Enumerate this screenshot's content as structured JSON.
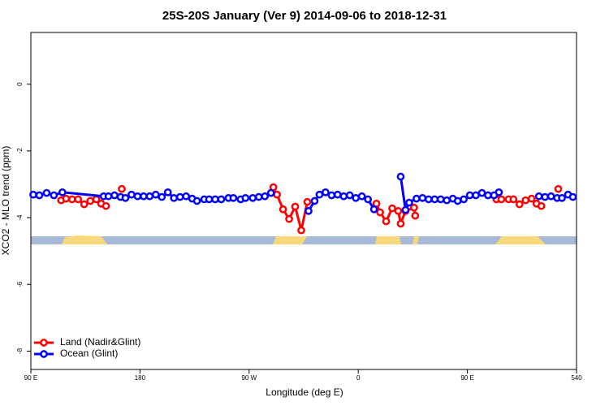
{
  "chart_data": {
    "type": "line",
    "title": "25S-20S January (Ver 9)   2014-09-06 to 2018-12-31",
    "x_label": "Longitude (deg E)",
    "y_label": "XCO2 - MLO trend (ppm)",
    "xlim": [
      90,
      540
    ],
    "xticks": [
      {
        "value": 90,
        "label": "90 E"
      },
      180,
      {
        "value": 270,
        "label": "90 W"
      },
      {
        "value": 360,
        "label": "0"
      },
      {
        "value": 450,
        "label": "90 E"
      },
      540
    ],
    "ylim": [
      -8.55,
      1.55
    ],
    "yticks": [
      0,
      -2,
      -4,
      -6,
      -8
    ],
    "legend": "lower left",
    "series": [
      {
        "name": "Land (Nadir&Glint)",
        "color": "#ff0000",
        "x": [
          115,
          119,
          124,
          129,
          134,
          139,
          144,
          148,
          152,
          null,
          165,
          null,
          290,
          293,
          298,
          303,
          308,
          313,
          318,
          null,
          375,
          378,
          383,
          388,
          393,
          395,
          399,
          406,
          407,
          null,
          474,
          478,
          484,
          488,
          493,
          498,
          503,
          507,
          511,
          null,
          525
        ],
        "values": [
          -3.48,
          -3.43,
          -3.45,
          -3.45,
          -3.6,
          -3.5,
          -3.45,
          -3.58,
          -3.65,
          null,
          -3.14,
          null,
          -3.09,
          -3.31,
          -3.75,
          -4.04,
          -3.67,
          -4.38,
          -3.53,
          null,
          -3.58,
          -3.84,
          -4.11,
          -3.72,
          -3.8,
          -4.18,
          -3.8,
          -3.7,
          -3.94,
          null,
          -3.45,
          -3.45,
          -3.45,
          -3.45,
          -3.6,
          -3.48,
          -3.43,
          -3.58,
          -3.65,
          null,
          -3.14
        ]
      },
      {
        "name": "Ocean (Glint)",
        "color": "#0000ff",
        "x": [
          92,
          97,
          103,
          109,
          116,
          150,
          154,
          159,
          164,
          168,
          173,
          178,
          183,
          188,
          193,
          198,
          203,
          208,
          213,
          218,
          223,
          227,
          233,
          237,
          242,
          247,
          253,
          257,
          263,
          267,
          273,
          278,
          283,
          288,
          null,
          319,
          324,
          328,
          333,
          338,
          343,
          348,
          353,
          358,
          363,
          368,
          373,
          null,
          395,
          399,
          402,
          408,
          413,
          418,
          423,
          428,
          433,
          438,
          442,
          447,
          452,
          457,
          462,
          467,
          472,
          476,
          null,
          509,
          514,
          519,
          524,
          528,
          533,
          537
        ],
        "values": [
          -3.31,
          -3.33,
          -3.26,
          -3.33,
          -3.24,
          -3.36,
          -3.36,
          -3.33,
          -3.38,
          -3.41,
          -3.31,
          -3.36,
          -3.36,
          -3.36,
          -3.31,
          -3.38,
          -3.24,
          -3.41,
          -3.38,
          -3.36,
          -3.43,
          -3.5,
          -3.45,
          -3.45,
          -3.45,
          -3.45,
          -3.41,
          -3.41,
          -3.45,
          -3.41,
          -3.41,
          -3.38,
          -3.36,
          -3.26,
          null,
          -3.8,
          -3.5,
          -3.31,
          -3.24,
          -3.33,
          -3.31,
          -3.36,
          -3.33,
          -3.41,
          -3.36,
          -3.45,
          -3.75,
          null,
          -2.77,
          -3.77,
          -3.55,
          -3.43,
          -3.41,
          -3.45,
          -3.45,
          -3.45,
          -3.48,
          -3.43,
          -3.5,
          -3.45,
          -3.33,
          -3.33,
          -3.26,
          -3.33,
          -3.33,
          -3.24,
          null,
          -3.36,
          -3.38,
          -3.36,
          -3.41,
          -3.41,
          -3.31,
          -3.38
        ]
      }
    ]
  }
}
